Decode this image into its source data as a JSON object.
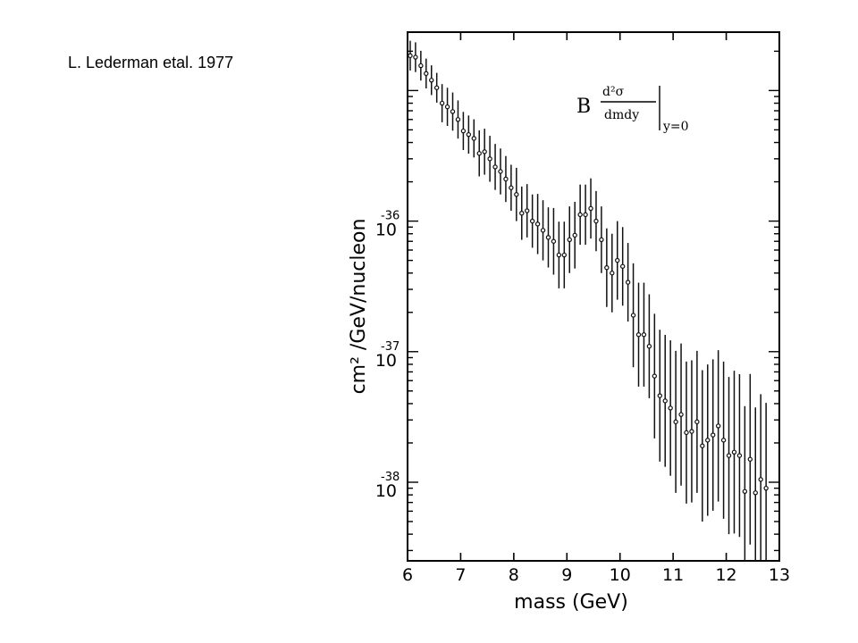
{
  "slide": {
    "title": "L. Lederman etal. 1977"
  },
  "chart_data": {
    "type": "scatter",
    "title": "",
    "xlabel": "mass (GeV)",
    "ylabel": "cm² /GeV/nucleon",
    "xlim": [
      6,
      13
    ],
    "ylim": [
      2.5e-39,
      2.8e-35
    ],
    "yscale": "log",
    "grid": false,
    "x_ticks": [
      "6",
      "7",
      "8",
      "9",
      "10",
      "11",
      "12",
      "13"
    ],
    "y_ticks": [
      {
        "base": "10",
        "exp": "-36",
        "value": 1e-36
      },
      {
        "base": "10",
        "exp": "-37",
        "value": 1e-37
      },
      {
        "base": "10",
        "exp": "-38",
        "value": 1e-38
      }
    ],
    "annotation": {
      "prefix": "B",
      "numerator": "d²σ",
      "denominator": "dmdy",
      "subscript": "y=0"
    },
    "series": [
      {
        "points": [
          [
            6.05,
            1.85e-35
          ],
          [
            6.15,
            1.8e-35
          ],
          [
            6.25,
            1.55e-35
          ],
          [
            6.35,
            1.35e-35
          ],
          [
            6.45,
            1.2e-35
          ],
          [
            6.55,
            1.05e-35
          ],
          [
            6.65,
            8e-36
          ],
          [
            6.75,
            7.5e-36
          ],
          [
            6.85,
            6.9e-36
          ],
          [
            6.95,
            6e-36
          ],
          [
            7.05,
            4.9e-36
          ],
          [
            7.15,
            4.6e-36
          ],
          [
            7.25,
            4.3e-36
          ],
          [
            7.35,
            3.3e-36
          ],
          [
            7.45,
            3.4e-36
          ],
          [
            7.55,
            3e-36
          ],
          [
            7.65,
            2.6e-36
          ],
          [
            7.75,
            2.4e-36
          ],
          [
            7.85,
            2.1e-36
          ],
          [
            7.95,
            1.8e-36
          ],
          [
            8.05,
            1.6e-36
          ],
          [
            8.15,
            1.15e-36
          ],
          [
            8.25,
            1.2e-36
          ],
          [
            8.35,
            1e-36
          ],
          [
            8.45,
            9.5e-37
          ],
          [
            8.55,
            8.5e-37
          ],
          [
            8.65,
            7.5e-37
          ],
          [
            8.75,
            7e-37
          ],
          [
            8.85,
            5.5e-37
          ],
          [
            8.95,
            5.5e-37
          ],
          [
            9.05,
            7.2e-37
          ],
          [
            9.15,
            7.8e-37
          ],
          [
            9.25,
            1.12e-36
          ],
          [
            9.35,
            1.12e-36
          ],
          [
            9.45,
            1.25e-36
          ],
          [
            9.55,
            1e-36
          ],
          [
            9.65,
            7.2e-37
          ],
          [
            9.75,
            4.4e-37
          ],
          [
            9.85,
            4e-37
          ],
          [
            9.95,
            5e-37
          ],
          [
            10.05,
            4.5e-37
          ],
          [
            10.15,
            3.4e-37
          ],
          [
            10.25,
            1.9e-37
          ],
          [
            10.35,
            1.35e-37
          ],
          [
            10.45,
            1.35e-37
          ],
          [
            10.55,
            1.1e-37
          ],
          [
            10.65,
            6.5e-38
          ],
          [
            10.75,
            4.6e-38
          ],
          [
            10.85,
            4.2e-38
          ],
          [
            10.95,
            3.7e-38
          ],
          [
            11.05,
            2.9e-38
          ],
          [
            11.15,
            3.3e-38
          ],
          [
            11.25,
            2.4e-38
          ],
          [
            11.35,
            2.45e-38
          ],
          [
            11.45,
            2.9e-38
          ],
          [
            11.55,
            1.9e-38
          ],
          [
            11.65,
            2.1e-38
          ],
          [
            11.75,
            2.3e-38
          ],
          [
            11.85,
            2.7e-38
          ],
          [
            11.95,
            2.1e-38
          ],
          [
            12.05,
            1.6e-38
          ],
          [
            12.15,
            1.7e-38
          ],
          [
            12.25,
            1.6e-38
          ],
          [
            12.35,
            8.5e-39
          ],
          [
            12.45,
            1.5e-38
          ],
          [
            12.55,
            8.3e-39
          ],
          [
            12.65,
            1.05e-38
          ],
          [
            12.75,
            9e-39
          ]
        ],
        "errors": [
          0.3,
          0.3,
          0.3,
          0.3,
          0.3,
          0.3,
          0.4,
          0.4,
          0.4,
          0.4,
          0.4,
          0.4,
          0.4,
          0.5,
          0.5,
          0.5,
          0.5,
          0.5,
          0.5,
          0.5,
          0.6,
          0.6,
          0.6,
          0.6,
          0.7,
          0.7,
          0.7,
          0.8,
          0.8,
          0.8,
          0.8,
          0.8,
          0.7,
          0.7,
          0.7,
          0.7,
          0.8,
          1.0,
          1.0,
          1.0,
          1.0,
          1.0,
          1.5,
          1.5,
          1.5,
          1.5,
          2.0,
          2.2,
          2.2,
          2.3,
          2.5,
          2.5,
          2.5,
          2.5,
          2.5,
          2.8,
          2.8,
          2.8,
          2.8,
          3.0,
          3.0,
          3.2,
          3.2,
          3.5,
          3.5,
          3.5,
          3.5,
          3.5
        ]
      }
    ]
  }
}
